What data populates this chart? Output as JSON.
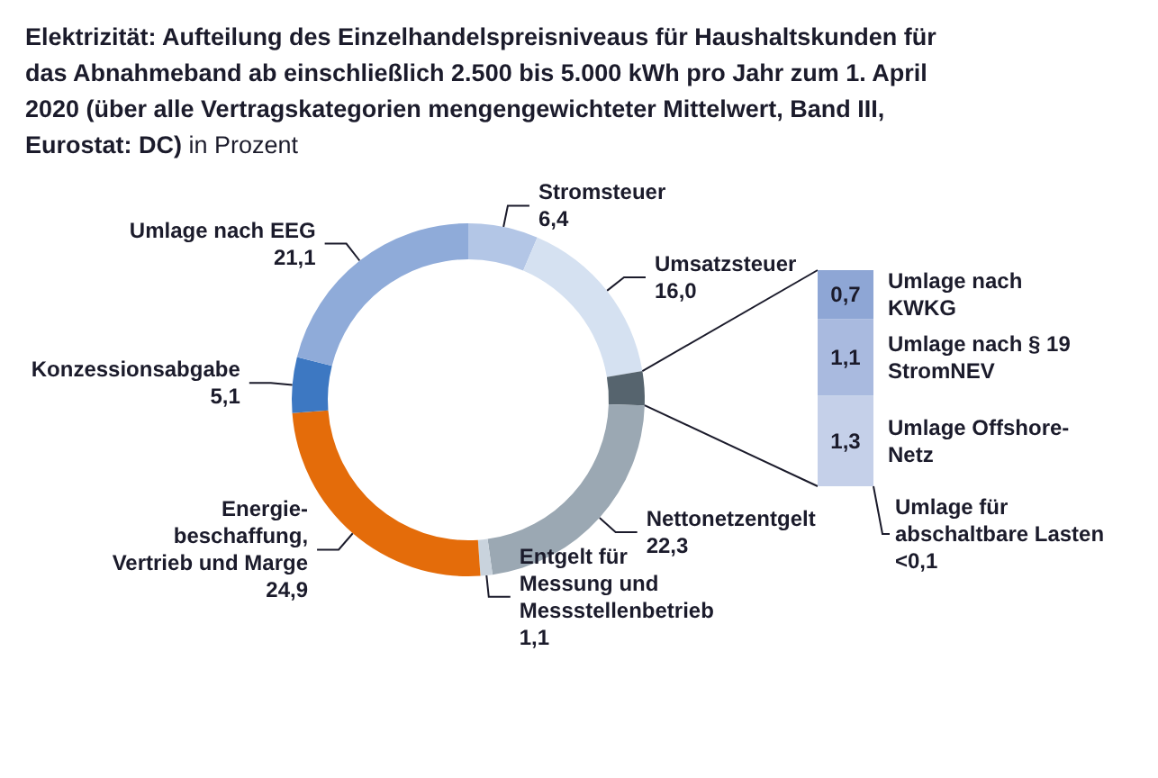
{
  "chart_data": [
    {
      "type": "donut",
      "title": "Elektrizität: Aufteilung des Einzelhandelspreisniveaus für Haushaltskunden für das Abnahmeband ab einschließlich 2.500 bis 5.000 kWh pro Jahr zum 1. April 2020 (über alle Vertragskategorien mengengewichteter Mittelwert, Band III, Eurostat: DC)",
      "subtitle": "in Prozent",
      "categories": [
        "Stromsteuer",
        "Umsatzsteuer",
        null,
        "Nettonetzentgelt",
        "Entgelt für\nMessung und\nMessstellenbetrieb",
        "Energie-\nbeschaffung,\nVertrieb und Marge",
        "Konzessionsabgabe",
        "Umlage nach EEG"
      ],
      "values": [
        6.4,
        16.0,
        3.1,
        22.3,
        1.1,
        24.9,
        5.1,
        21.1
      ],
      "colors": [
        "#b3c6e6",
        "#d5e1f1",
        "#56646e",
        "#9ba8b3",
        "#c9d3dd",
        "#e46c0a",
        "#3d78c2",
        "#8fabd9"
      ],
      "value_labels": [
        "6,4",
        "16,0",
        null,
        "22,3",
        "1,1",
        "24,9",
        "5,1",
        "21,1"
      ]
    },
    {
      "type": "bar",
      "stacked": true,
      "tick_labels": false,
      "categories": [
        null
      ],
      "series": [
        {
          "name": "Umlage Offshore-\nNetz",
          "color": "#c5d0e9",
          "values": [
            1.3
          ],
          "value_labels": [
            "1,3"
          ]
        },
        {
          "name": "Umlage nach § 19\nStromNEV",
          "color": "#a9badf",
          "values": [
            1.1
          ],
          "value_labels": [
            "1,1"
          ]
        },
        {
          "name": "Umlage nach\nKWKG",
          "color": "#8ea6d5",
          "values": [
            0.7
          ],
          "value_labels": [
            "0,7"
          ]
        }
      ],
      "annotations": [
        "Umlage für\nabschaltbare Lasten\n<0,1"
      ]
    }
  ]
}
